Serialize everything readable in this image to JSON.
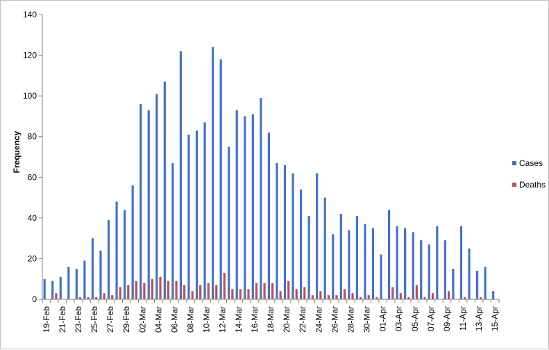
{
  "chart_data": {
    "type": "bar",
    "title": "",
    "xlabel": "",
    "ylabel": "Frequency",
    "ylim": [
      0,
      140
    ],
    "yticks": [
      0,
      20,
      40,
      60,
      80,
      100,
      120,
      140
    ],
    "grid": false,
    "legend_position": "right",
    "categories": [
      "19-Feb",
      "20-Feb",
      "21-Feb",
      "22-Feb",
      "23-Feb",
      "24-Feb",
      "25-Feb",
      "26-Feb",
      "27-Feb",
      "28-Feb",
      "29-Feb",
      "01-Mar",
      "02-Mar",
      "03-Mar",
      "04-Mar",
      "05-Mar",
      "06-Mar",
      "07-Mar",
      "08-Mar",
      "09-Mar",
      "10-Mar",
      "11-Mar",
      "12-Mar",
      "13-Mar",
      "14-Mar",
      "15-Mar",
      "16-Mar",
      "17-Mar",
      "18-Mar",
      "19-Mar",
      "20-Mar",
      "21-Mar",
      "22-Mar",
      "23-Mar",
      "24-Mar",
      "25-Mar",
      "26-Mar",
      "27-Mar",
      "28-Mar",
      "29-Mar",
      "30-Mar",
      "31-Mar",
      "01-Apr",
      "02-Apr",
      "03-Apr",
      "04-Apr",
      "05-Apr",
      "06-Apr",
      "07-Apr",
      "08-Apr",
      "09-Apr",
      "10-Apr",
      "11-Apr",
      "12-Apr",
      "13-Apr",
      "14-Apr",
      "15-Apr"
    ],
    "visible_xtick_labels": [
      "19-Feb",
      "21-Feb",
      "23-Feb",
      "25-Feb",
      "27-Feb",
      "29-Feb",
      "02-Mar",
      "04-Mar",
      "06-Mar",
      "08-Mar",
      "10-Mar",
      "12-Mar",
      "14-Mar",
      "16-Mar",
      "18-Mar",
      "20-Mar",
      "22-Mar",
      "24-Mar",
      "26-Mar",
      "28-Mar",
      "30-Mar",
      "01-Apr",
      "03-Apr",
      "05-Apr",
      "07-Apr",
      "09-Apr",
      "11-Apr",
      "13-Apr",
      "15-Apr"
    ],
    "series": [
      {
        "name": "Cases",
        "color": "#4472C4",
        "values": [
          10,
          9,
          11,
          16,
          15,
          19,
          30,
          24,
          39,
          48,
          44,
          56,
          96,
          93,
          101,
          107,
          67,
          122,
          81,
          83,
          87,
          124,
          118,
          75,
          93,
          90,
          91,
          99,
          82,
          67,
          66,
          62,
          54,
          41,
          62,
          50,
          32,
          42,
          34,
          41,
          37,
          35,
          22,
          44,
          36,
          35,
          33,
          29,
          27,
          36,
          29,
          15,
          36,
          25,
          14,
          16,
          4
        ]
      },
      {
        "name": "Deaths",
        "color": "#C0504D",
        "values": [
          0,
          3,
          0,
          0,
          1,
          1,
          1,
          3,
          2,
          6,
          7,
          9,
          8,
          10,
          11,
          9,
          9,
          7,
          4,
          7,
          8,
          7,
          13,
          5,
          5,
          5,
          8,
          8,
          8,
          4,
          9,
          5,
          6,
          2,
          4,
          2,
          2,
          5,
          3,
          1,
          2,
          1,
          0,
          6,
          3,
          1,
          7,
          1,
          3,
          0,
          4,
          0,
          1,
          0,
          1,
          0,
          0
        ]
      }
    ]
  }
}
